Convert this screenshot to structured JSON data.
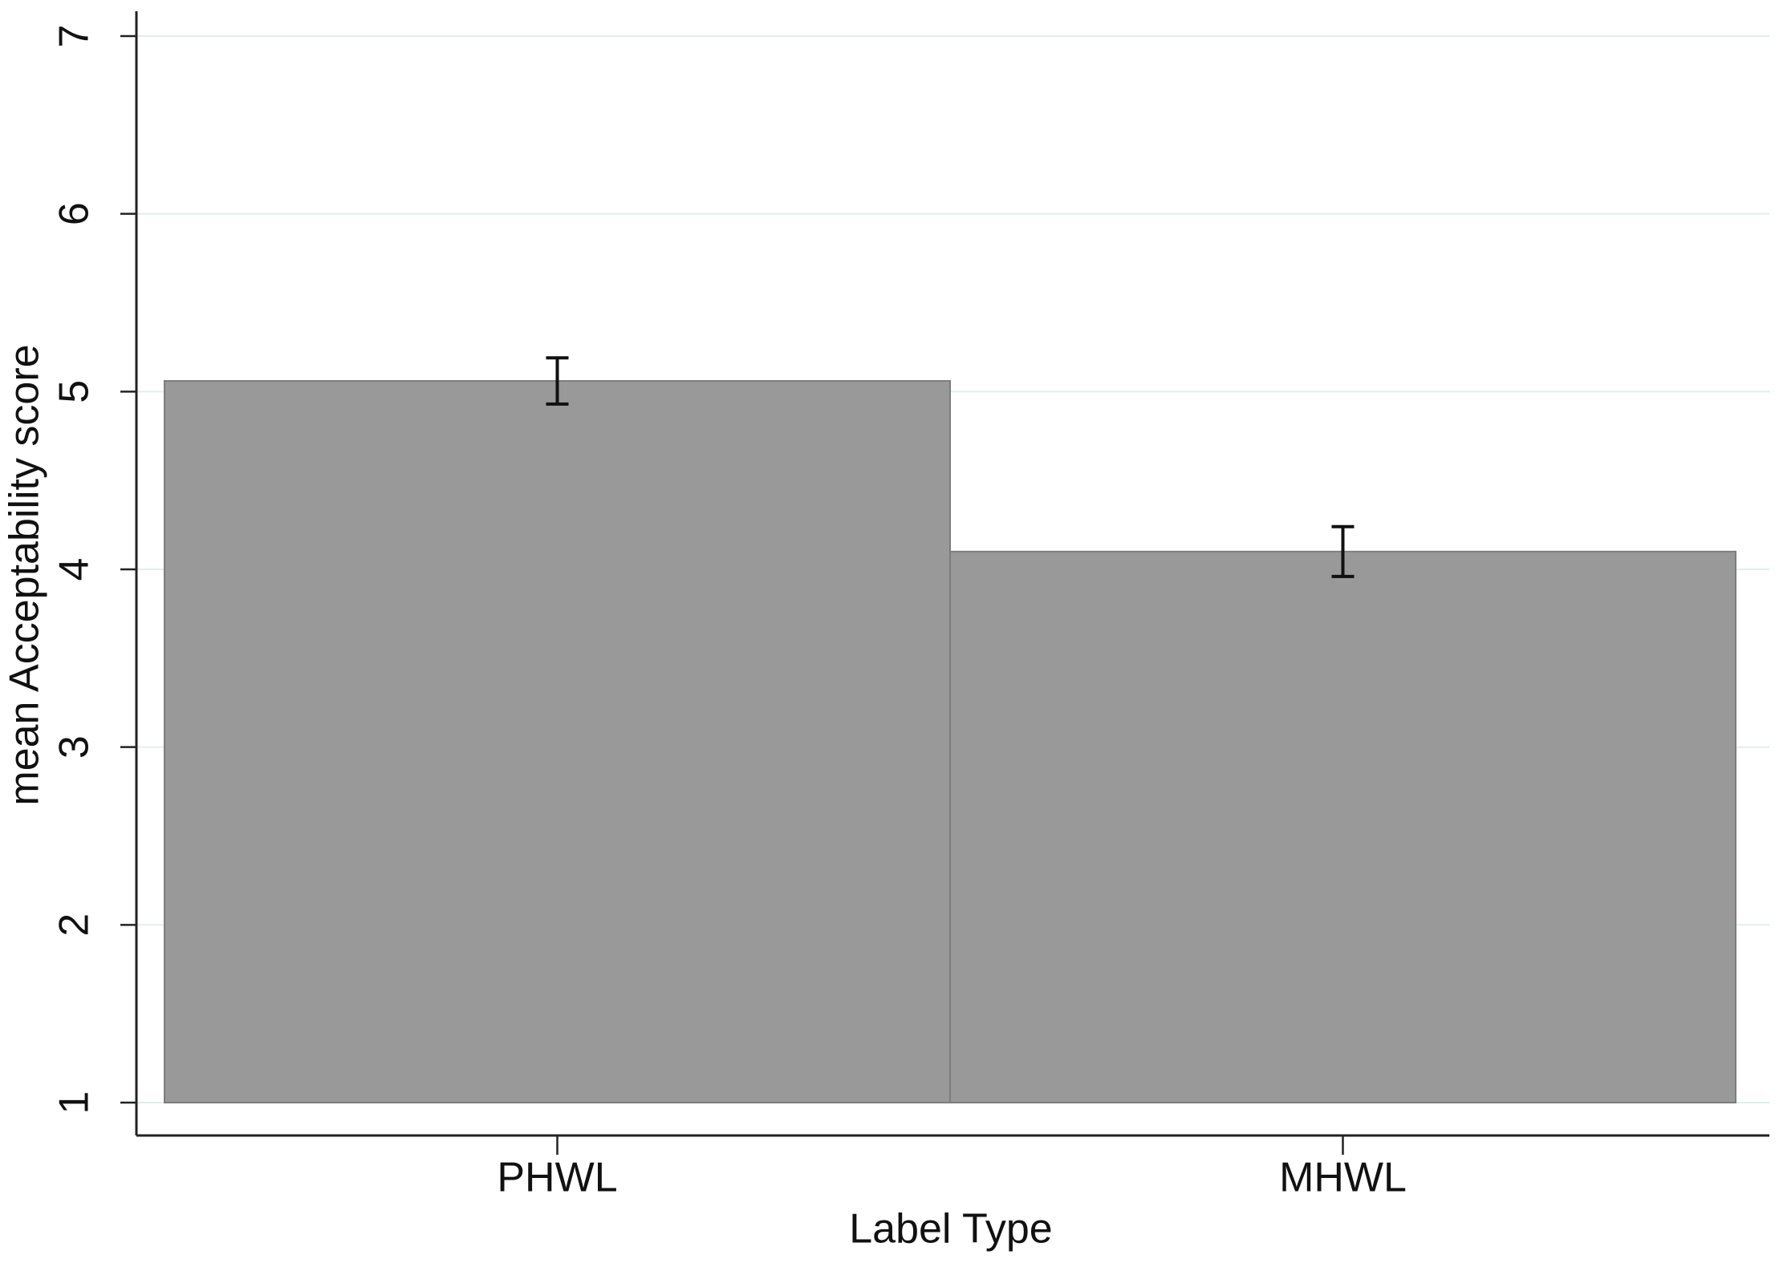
{
  "chart_data": {
    "type": "bar",
    "x_label": "Label Type",
    "y_label": "mean Acceptability score",
    "categories": [
      "PHWL",
      "MHWL"
    ],
    "values": [
      5.06,
      4.1
    ],
    "errors": [
      0.13,
      0.14
    ],
    "color": "#999999",
    "ylim": [
      1,
      7
    ],
    "yticks": [
      1,
      2,
      3,
      4,
      5,
      6,
      7
    ],
    "grid": true
  }
}
